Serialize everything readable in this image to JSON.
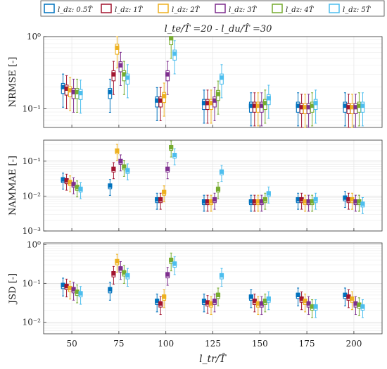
{
  "chart_data": {
    "type": "box",
    "title": "l_te/T̂ =20 - l_du/T̂ =30",
    "xlabel": "l_tr/T̂",
    "x_ticks": [
      50,
      75,
      100,
      125,
      150,
      175,
      200
    ],
    "legend": {
      "placement": "top",
      "entries": [
        {
          "label": "l_dz: 0.5T̂",
          "color": "#0072BD"
        },
        {
          "label": "l_dz: 1T̂",
          "color": "#A2142F"
        },
        {
          "label": "l_dz: 2T̂",
          "color": "#EDB120"
        },
        {
          "label": "l_dz: 3T̂",
          "color": "#7E2F8E"
        },
        {
          "label": "l_dz: 4T̂",
          "color": "#77AC30"
        },
        {
          "label": "l_dz: 5T̂",
          "color": "#4DBEEE"
        }
      ]
    },
    "panels": [
      {
        "ylabel": "NRMSE [-]",
        "yscale": "log",
        "ylim": [
          0.055,
          1.0
        ],
        "y_ticks": [
          {
            "v": 0.1,
            "label": "10⁻¹"
          },
          {
            "v": 1,
            "label": "10⁰"
          }
        ],
        "grid": true,
        "medians": [
          [
            0.2,
            0.19,
            0.18,
            0.17,
            0.17,
            0.165
          ],
          [
            0.17,
            0.3,
            0.7,
            0.4,
            0.3,
            0.27
          ],
          [
            0.13,
            0.13,
            0.15,
            0.3,
            0.95,
            0.58
          ],
          [
            0.12,
            0.12,
            0.12,
            0.13,
            0.16,
            0.27
          ],
          [
            0.11,
            0.11,
            0.11,
            0.11,
            0.12,
            0.14
          ],
          [
            0.11,
            0.105,
            0.105,
            0.105,
            0.11,
            0.12
          ],
          [
            0.11,
            0.105,
            0.105,
            0.105,
            0.11,
            0.11
          ]
        ]
      },
      {
        "ylabel": "NAMMAE [-]",
        "yscale": "log",
        "ylim": [
          0.001,
          0.4
        ],
        "y_ticks": [
          {
            "v": 0.001,
            "label": "10⁻³"
          },
          {
            "v": 0.01,
            "label": "10⁻²"
          },
          {
            "v": 0.1,
            "label": "10⁻¹"
          }
        ],
        "grid": true,
        "medians": [
          [
            0.03,
            0.028,
            0.025,
            0.022,
            0.018,
            0.016
          ],
          [
            0.02,
            0.06,
            0.2,
            0.1,
            0.07,
            0.055
          ],
          [
            0.008,
            0.008,
            0.013,
            0.06,
            0.25,
            0.15
          ],
          [
            0.007,
            0.007,
            0.007,
            0.008,
            0.016,
            0.05
          ],
          [
            0.007,
            0.007,
            0.007,
            0.007,
            0.008,
            0.012
          ],
          [
            0.008,
            0.008,
            0.007,
            0.007,
            0.007,
            0.008
          ],
          [
            0.009,
            0.008,
            0.008,
            0.007,
            0.007,
            0.006
          ]
        ]
      },
      {
        "ylabel": "JSD [-]",
        "yscale": "log",
        "ylim": [
          0.005,
          1.1
        ],
        "y_ticks": [
          {
            "v": 0.01,
            "label": "10⁻²"
          },
          {
            "v": 0.1,
            "label": "10⁻¹"
          },
          {
            "v": 1,
            "label": "10⁰"
          }
        ],
        "grid": true,
        "medians": [
          [
            0.09,
            0.085,
            0.075,
            0.07,
            0.06,
            0.055
          ],
          [
            0.07,
            0.18,
            0.37,
            0.24,
            0.19,
            0.16
          ],
          [
            0.035,
            0.03,
            0.045,
            0.17,
            0.4,
            0.32
          ],
          [
            0.035,
            0.032,
            0.03,
            0.035,
            0.05,
            0.16
          ],
          [
            0.045,
            0.035,
            0.03,
            0.03,
            0.035,
            0.04
          ],
          [
            0.05,
            0.04,
            0.035,
            0.03,
            0.025,
            0.025
          ],
          [
            0.05,
            0.045,
            0.04,
            0.03,
            0.028,
            0.025
          ]
        ]
      }
    ]
  }
}
